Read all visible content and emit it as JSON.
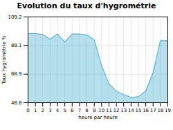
{
  "chart_data": {
    "type": "area",
    "title": "Evolution du taux d'hygrométrie",
    "xlabel": "heure par heure",
    "ylabel": "Taux hygrométrie %",
    "x": [
      0,
      1,
      2,
      3,
      4,
      5,
      6,
      7,
      8,
      9,
      10,
      11,
      12,
      13,
      14,
      15,
      16,
      17,
      18,
      19
    ],
    "values": [
      97.5,
      97.5,
      96.8,
      93.5,
      97.2,
      91.5,
      97.2,
      97.2,
      96.5,
      93.0,
      75.0,
      62.0,
      57.0,
      54.5,
      52.5,
      53.0,
      57.0,
      70.0,
      92.5,
      92.5
    ],
    "color": "#5ab8d5",
    "xlim": [
      0,
      19
    ],
    "xticks": [
      0,
      1,
      2,
      3,
      4,
      5,
      6,
      7,
      8,
      9,
      10,
      11,
      12,
      13,
      14,
      15,
      16,
      17,
      18,
      19
    ],
    "ylim": [
      48.8,
      109.2
    ],
    "yticks": [
      48.8,
      68.9,
      89.1,
      109.2
    ],
    "grid": true
  }
}
